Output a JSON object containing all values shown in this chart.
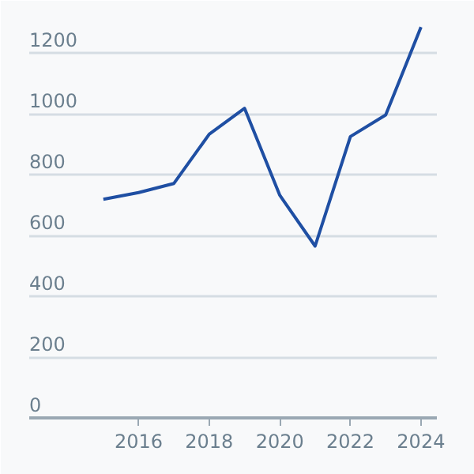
{
  "chart_data": {
    "type": "line",
    "x": [
      2015,
      2016,
      2017,
      2018,
      2019,
      2020,
      2021,
      2022,
      2023,
      2024
    ],
    "values": [
      719,
      741,
      771,
      933,
      1018,
      732,
      565,
      925,
      996,
      1285
    ],
    "color": "#1f4fa3",
    "xlim": [
      2012.9,
      2024.45
    ],
    "ylim": [
      0,
      1330
    ],
    "xticks": [
      2016,
      2018,
      2020,
      2022,
      2024
    ],
    "yticks": [
      0,
      200,
      400,
      600,
      800,
      1000,
      1200
    ],
    "grid": "y",
    "marker": "none",
    "line_style": "solid"
  }
}
